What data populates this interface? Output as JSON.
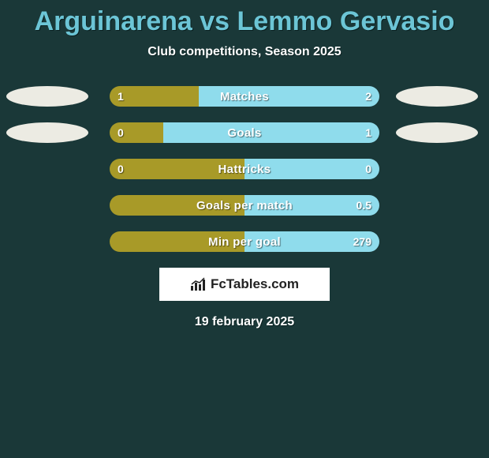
{
  "title": "Arguinarena vs Lemmo Gervasio",
  "subtitle": "Club competitions, Season 2025",
  "date": "19 february 2025",
  "colors": {
    "background": "#1a3838",
    "title_color": "#6cc5d6",
    "left_bar": "#a89a28",
    "right_bar": "#8fdcec",
    "photo_bg": "#ecebe3"
  },
  "logo_text": "FcTables.com",
  "rows": [
    {
      "label": "Matches",
      "left_val": "1",
      "right_val": "2",
      "left_pct": 33,
      "show_photos": true
    },
    {
      "label": "Goals",
      "left_val": "0",
      "right_val": "1",
      "left_pct": 20,
      "show_photos": true
    },
    {
      "label": "Hattricks",
      "left_val": "0",
      "right_val": "0",
      "left_pct": 50,
      "show_photos": false
    },
    {
      "label": "Goals per match",
      "left_val": "",
      "right_val": "0.5",
      "left_pct": 50,
      "show_photos": false
    },
    {
      "label": "Min per goal",
      "left_val": "",
      "right_val": "279",
      "left_pct": 50,
      "show_photos": false
    }
  ]
}
